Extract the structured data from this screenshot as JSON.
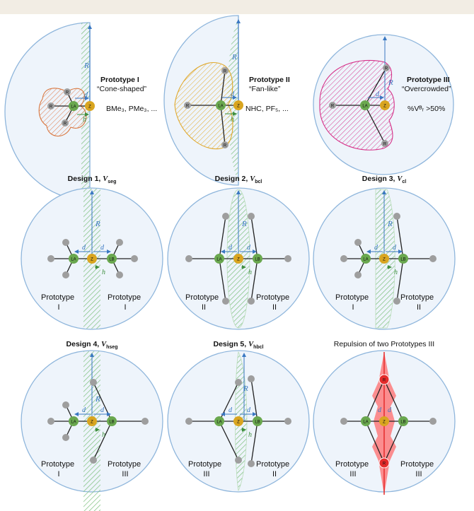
{
  "prototypes": {
    "p1": {
      "title": "Prototype I",
      "shape": "“Cone-shaped”",
      "examples": "BMe₃, PMe₃, ..."
    },
    "p2": {
      "title": "Prototype II",
      "shape": "“Fan-like”",
      "examples": "NHC, PF₅, ..."
    },
    "p3": {
      "title": "Prototype III",
      "shape": "“Overcrowded”",
      "examples": "%Vᴮᵣ >50%"
    }
  },
  "designs": {
    "d1": {
      "title": "Design 1, ",
      "sym": "V",
      "sub": "seg",
      "left": "Prototype",
      "left_num": "I",
      "right": "Prototype",
      "right_num": "I"
    },
    "d2": {
      "title": "Design 2, ",
      "sym": "V",
      "sub": "bcl",
      "left": "Prototype",
      "left_num": "II",
      "right": "Prototype",
      "right_num": "II"
    },
    "d3": {
      "title": "Design 3, ",
      "sym": "V",
      "sub": "cl",
      "left": "Prototype",
      "left_num": "I",
      "right": "Prototype",
      "right_num": "II"
    },
    "d4": {
      "title": "Design 4, ",
      "sym": "V",
      "sub": "hseg",
      "left": "Prototype",
      "left_num": "I",
      "right": "Prototype",
      "right_num": "III"
    },
    "d5": {
      "title": "Design 5, ",
      "sym": "V",
      "sub": "hbcl",
      "left": "Prototype",
      "left_num": "III",
      "right": "Prototype",
      "right_num": "II"
    },
    "d6": {
      "title": "Repulsion of two Prototypes III",
      "left": "Prototype",
      "left_num": "III",
      "right": "Prototype",
      "right_num": "III"
    }
  },
  "atoms": {
    "la": "LA",
    "lb": "LB",
    "z": "Z",
    "r": "R"
  },
  "geometry_labels": {
    "radius": "R",
    "distance": "d",
    "height": "h"
  },
  "colors": {
    "sphere_fill": "#eef4fb",
    "sphere_stroke": "#8fb6dc",
    "arrow_blue": "#3a78c2",
    "hatch_green": "#8cc78c",
    "atom_green": "#6aa84f",
    "atom_gold": "#d9a520",
    "atom_grey": "#9e9e9e",
    "proto1_orange": "#f1b38a",
    "proto2_yellow": "#f4c95d",
    "proto3_magenta": "#e0479b",
    "repulsion_red": "#ff3b3b"
  }
}
